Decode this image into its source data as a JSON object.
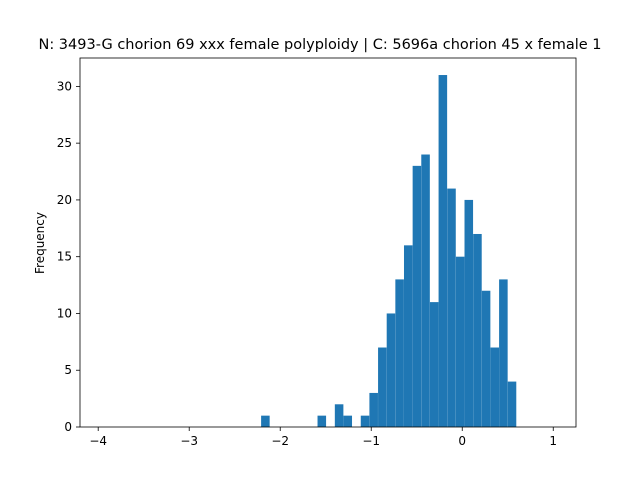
{
  "chart_data": {
    "type": "bar",
    "title": "N: 3493-G chorion 69 xxx female polyploidy | C: 5696a chorion 45 x female 1",
    "xlabel": "",
    "ylabel": "Frequency",
    "bar_color": "#1f77b4",
    "xlim": [
      -4.2,
      1.25
    ],
    "ylim": [
      0,
      32.5
    ],
    "xticks": [
      -4,
      -3,
      -2,
      -1,
      0,
      1
    ],
    "xtick_labels": [
      "−4",
      "−3",
      "−2",
      "−1",
      "0",
      "1"
    ],
    "yticks": [
      0,
      5,
      10,
      15,
      20,
      25,
      30
    ],
    "ytick_labels": [
      "0",
      "5",
      "10",
      "15",
      "20",
      "25",
      "30"
    ],
    "grid": false,
    "bin_width": 0.094,
    "bins": [
      {
        "left": -2.21,
        "count": 1
      },
      {
        "left": -1.59,
        "count": 1
      },
      {
        "left": -1.4,
        "count": 2
      },
      {
        "left": -1.305,
        "count": 1
      },
      {
        "left": -1.115,
        "count": 1
      },
      {
        "left": -1.02,
        "count": 3
      },
      {
        "left": -0.925,
        "count": 7
      },
      {
        "left": -0.83,
        "count": 10
      },
      {
        "left": -0.735,
        "count": 13
      },
      {
        "left": -0.64,
        "count": 16
      },
      {
        "left": -0.545,
        "count": 23
      },
      {
        "left": -0.45,
        "count": 24
      },
      {
        "left": -0.355,
        "count": 11
      },
      {
        "left": -0.26,
        "count": 31
      },
      {
        "left": -0.165,
        "count": 21
      },
      {
        "left": -0.07,
        "count": 15
      },
      {
        "left": 0.025,
        "count": 20
      },
      {
        "left": 0.12,
        "count": 17
      },
      {
        "left": 0.215,
        "count": 12
      },
      {
        "left": 0.31,
        "count": 7
      },
      {
        "left": 0.405,
        "count": 13
      },
      {
        "left": 0.5,
        "count": 4
      }
    ]
  }
}
